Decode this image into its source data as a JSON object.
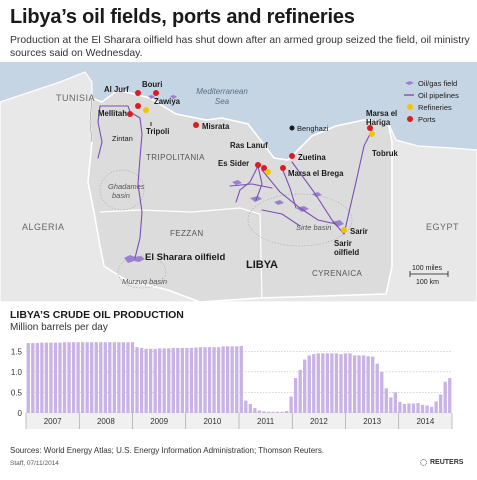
{
  "title": "Libya’s oil fields, ports and refineries",
  "subtitle": "Production at the El Sharara oilfield has shut down after an armed group seized the field, oil ministry sources said on Wednesday.",
  "colors": {
    "land": "#e8e8e8",
    "libya": "#dcdcdc",
    "sea": "#c5d5e4",
    "field": "#9b7fd0",
    "pipeline": "#7d4fb5",
    "refinery": "#f5c400",
    "port": "#d81e1e",
    "bar": "#c8b3e4"
  },
  "map": {
    "countries": {
      "tunisia": "TUNISIA",
      "algeria": "ALGERIA",
      "egypt": "EGYPT",
      "libya": "LIBYA"
    },
    "sea": "Mediterranean\nSea",
    "regions": {
      "tripolitania": "TRIPOLITANIA",
      "fezzan": "FEZZAN",
      "cyrenaica": "CYRENAICA"
    },
    "basins": {
      "ghadames": "Ghadames\nbasin",
      "sirte": "Sirte basin",
      "murzuq": "Murzuq basin"
    },
    "places": {
      "al_jurf": "Al Jurf",
      "bouri": "Bouri",
      "zawiya": "Zawiya",
      "mellitah": "Mellitah",
      "zintan": "Zintan",
      "tripoli": "Tripoli",
      "misrata": "Misrata",
      "ras_lanuf": "Ras Lanuf",
      "benghazi": "Benghazi",
      "es_sider": "Es Sider",
      "zuetina": "Zuetina",
      "marsa_el_brega": "Marsa el Brega",
      "marsa_el_hariga": "Marsa el\nHariga",
      "tobruk": "Tobruk",
      "sarir": "Sarir",
      "sarir_oilfield": "Sarir\noilfield",
      "el_sharara": "El Sharara oilfield"
    },
    "legend": [
      "Oil/gas field",
      "Oil pipelines",
      "Refineries",
      "Ports"
    ],
    "scale": {
      "miles": "100 miles",
      "km": "100 km"
    }
  },
  "chart_data": {
    "type": "bar",
    "title": "LIBYA’S CRUDE OIL PRODUCTION",
    "ylabel": "Million barrels per day",
    "ylim": [
      0,
      1.75
    ],
    "yticks": [
      0,
      0.5,
      1.0,
      1.5
    ],
    "ytick_labels": [
      "0",
      "0.5",
      "1.0",
      "1.5"
    ],
    "grid": true,
    "years": [
      "2007",
      "2008",
      "2009",
      "2010",
      "2011",
      "2012",
      "2013",
      "2014"
    ],
    "values": [
      1.7,
      1.7,
      1.7,
      1.71,
      1.71,
      1.71,
      1.71,
      1.71,
      1.72,
      1.72,
      1.72,
      1.72,
      1.72,
      1.72,
      1.72,
      1.72,
      1.72,
      1.72,
      1.72,
      1.72,
      1.72,
      1.72,
      1.72,
      1.72,
      1.6,
      1.58,
      1.56,
      1.56,
      1.56,
      1.57,
      1.57,
      1.57,
      1.58,
      1.58,
      1.58,
      1.58,
      1.58,
      1.59,
      1.6,
      1.6,
      1.6,
      1.6,
      1.6,
      1.62,
      1.62,
      1.62,
      1.62,
      1.63,
      0.3,
      0.22,
      0.12,
      0.06,
      0.04,
      0.03,
      0.03,
      0.03,
      0.03,
      0.05,
      0.4,
      0.85,
      1.05,
      1.3,
      1.4,
      1.43,
      1.45,
      1.45,
      1.45,
      1.45,
      1.45,
      1.43,
      1.45,
      1.45,
      1.4,
      1.4,
      1.4,
      1.38,
      1.37,
      1.2,
      1.0,
      0.6,
      0.38,
      0.5,
      0.27,
      0.22,
      0.23,
      0.23,
      0.24,
      0.2,
      0.18,
      0.15,
      0.28,
      0.45,
      0.76,
      0.85
    ]
  },
  "footer": {
    "sources": "Sources: World Energy Atlas; U.S. Energy Information Administration; Thomson Reuters.",
    "staff": "Staff, 07/11/2014",
    "brand": "REUTERS"
  }
}
